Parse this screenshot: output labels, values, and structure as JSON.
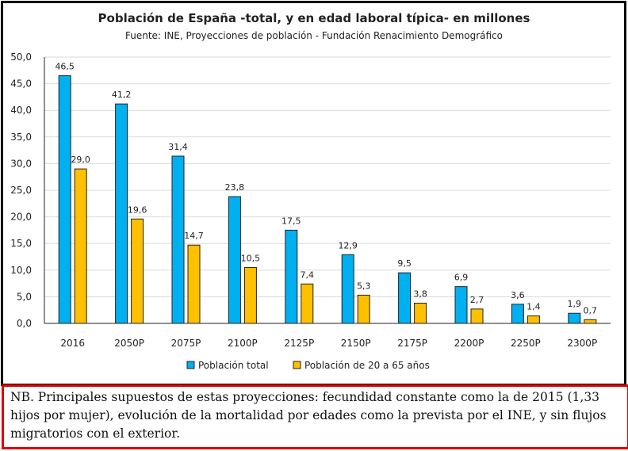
{
  "chart_data": {
    "type": "bar",
    "title": "Población de España -total, y en edad laboral típica- en millones",
    "subtitle": "Fuente: INE, Proyecciones de población - Fundación Renacimiento Demográfico",
    "categories": [
      "2016",
      "2050P",
      "2075P",
      "2100P",
      "2125P",
      "2150P",
      "2175P",
      "2200P",
      "2250P",
      "2300P"
    ],
    "series": [
      {
        "name": "Población total",
        "color": "#00b0f0",
        "values": [
          46.5,
          41.2,
          31.4,
          23.8,
          17.5,
          12.9,
          9.5,
          6.9,
          3.6,
          1.9
        ],
        "labels": [
          "46,5",
          "41,2",
          "31,4",
          "23,8",
          "17,5",
          "12,9",
          "9,5",
          "6,9",
          "3,6",
          "1,9"
        ]
      },
      {
        "name": "Población de 20 a 65 años",
        "color": "#ffc000",
        "values": [
          29.0,
          19.6,
          14.7,
          10.5,
          7.4,
          5.3,
          3.8,
          2.7,
          1.4,
          0.7
        ],
        "labels": [
          "29,0",
          "19,6",
          "14,7",
          "10,5",
          "7,4",
          "5,3",
          "3,8",
          "2,7",
          "1,4",
          "0,7"
        ]
      }
    ],
    "ylim": [
      0,
      50
    ],
    "yticks": [
      "0,0",
      "5,0",
      "10,0",
      "15,0",
      "20,0",
      "25,0",
      "30,0",
      "35,0",
      "40,0",
      "45,0",
      "50,0"
    ],
    "grid": true,
    "legend": "bottom"
  },
  "note": "NB. Principales supuestos de estas proyecciones: fecundidad constante como la de 2015 (1,33 hijos por mujer), evolución de la mortalidad por edades como la prevista por el INE, y sin flujos migratorios con el exterior."
}
